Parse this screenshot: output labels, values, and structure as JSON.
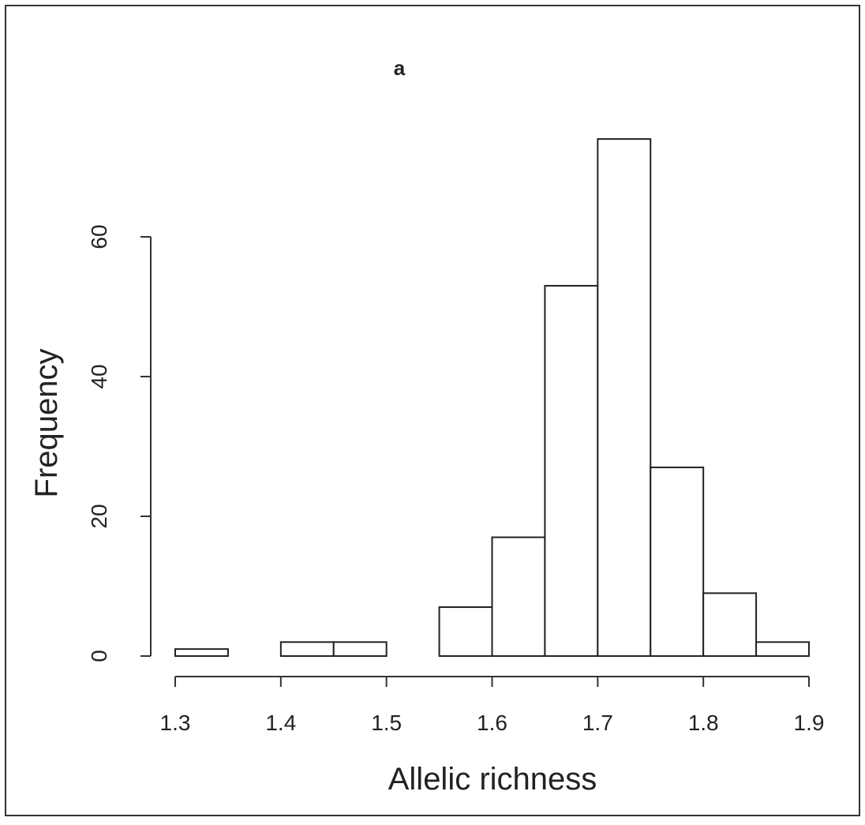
{
  "chart_data": {
    "type": "bar",
    "title": "a",
    "xlabel": "Allelic richness",
    "ylabel": "Frequency",
    "bin_edges": [
      1.3,
      1.35,
      1.4,
      1.45,
      1.5,
      1.55,
      1.6,
      1.65,
      1.7,
      1.75,
      1.8,
      1.85,
      1.9
    ],
    "values": [
      1,
      0,
      2,
      2,
      0,
      7,
      17,
      53,
      74,
      27,
      9,
      2
    ],
    "xlim": [
      1.3,
      1.9
    ],
    "ylim": [
      0,
      60
    ],
    "x_ticks": [
      1.3,
      1.4,
      1.5,
      1.6,
      1.7,
      1.8,
      1.9
    ],
    "x_tick_labels": [
      "1.3",
      "1.4",
      "1.5",
      "1.6",
      "1.7",
      "1.8",
      "1.9"
    ],
    "y_ticks": [
      0,
      20,
      40,
      60
    ],
    "y_tick_labels": [
      "0",
      "20",
      "40",
      "60"
    ],
    "grid": false,
    "colors": {
      "bar_fill": "#ffffff",
      "bar_stroke": "#222222",
      "frame": "#333333"
    }
  }
}
